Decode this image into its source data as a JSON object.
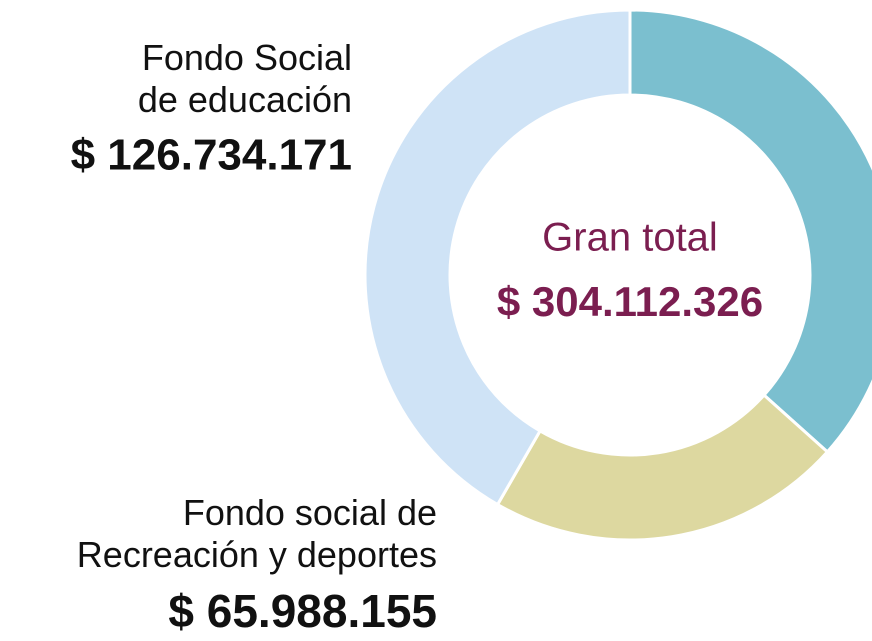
{
  "chart_data": {
    "type": "donut",
    "categories": [
      null,
      "Fondo social de\nRecreación y deportes",
      "Fondo Social\nde educación"
    ],
    "values": [
      111389999,
      65988155,
      126734171
    ],
    "value_labels": [
      null,
      "$ 65.988.155",
      "$ 126.734.171"
    ],
    "colors": [
      "#7bbfcf",
      "#ddd8a0",
      "#cfe3f6"
    ],
    "center_label": "Gran total",
    "total": 304112326,
    "total_label": "$ 304.112.326"
  }
}
